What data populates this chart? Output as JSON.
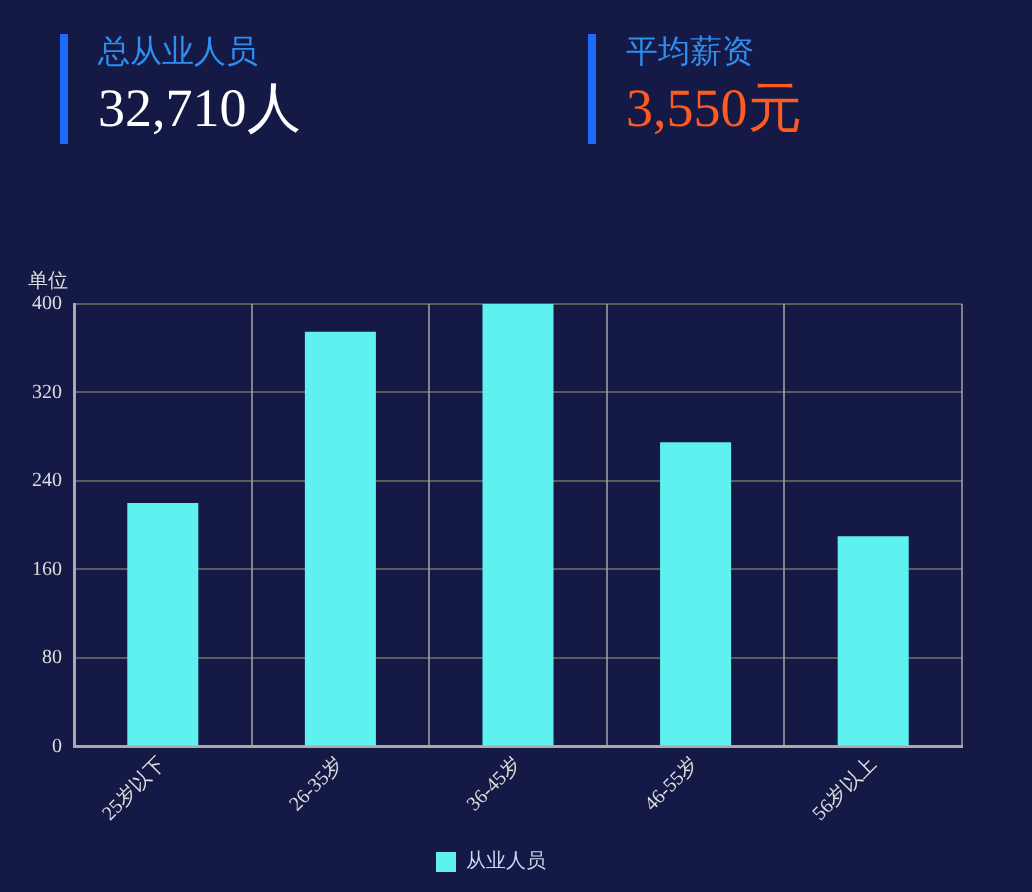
{
  "chart_data": [
    {
      "type": "other",
      "annotations": [
        "总从业人员",
        "32,710人",
        "平均薪资",
        "3,550元"
      ]
    },
    {
      "type": "bar",
      "ylabel": "单位",
      "categories": [
        "25岁以下",
        "26-35岁",
        "36-45岁",
        "46-55岁",
        "56岁以上"
      ],
      "series": [
        {
          "name": "从业人员",
          "color": "#5ff0f0",
          "values": [
            220,
            375,
            400,
            275,
            190
          ]
        }
      ],
      "ylim": [
        0,
        400
      ],
      "yticks": [
        0,
        80,
        160,
        240,
        320,
        400
      ],
      "grid": true,
      "legend": "bottom"
    }
  ]
}
